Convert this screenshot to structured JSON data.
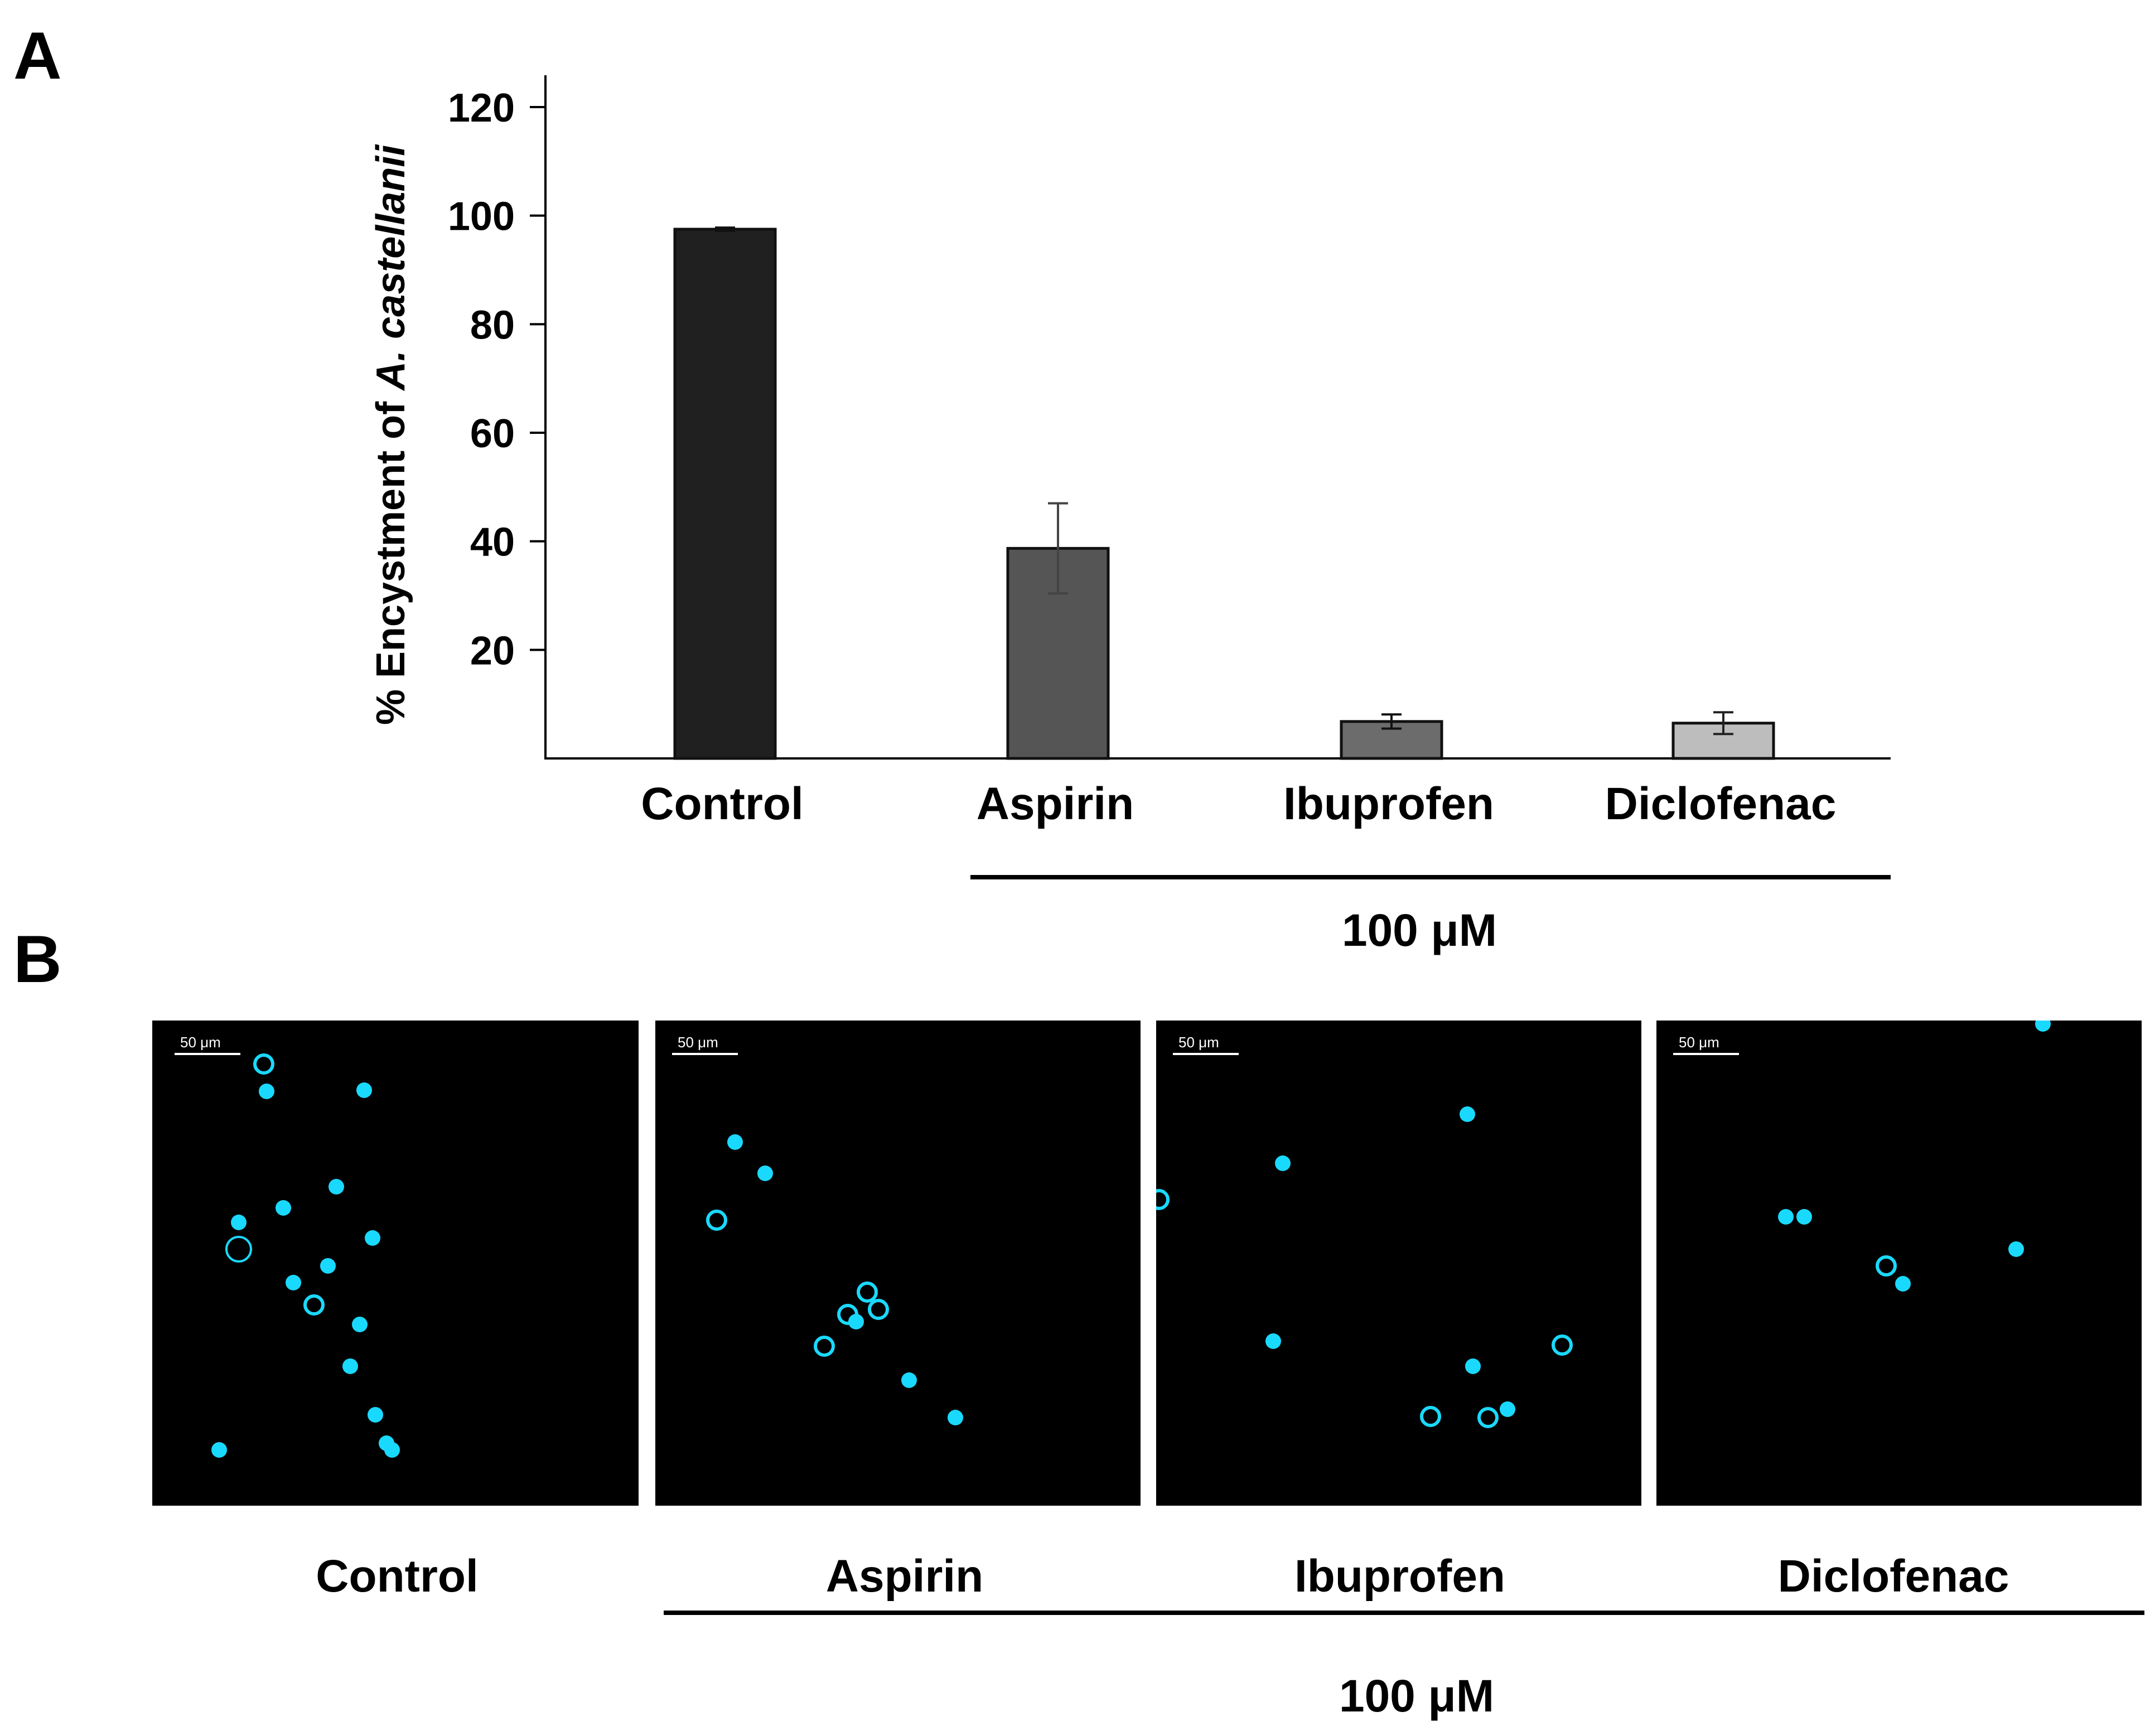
{
  "panel_a": {
    "letter": "A",
    "ylabel_prefix": "% Encystment of ",
    "ylabel_species": "A. castellanii",
    "concentration_label": "100 μM"
  },
  "panel_b": {
    "letter": "B",
    "scale_bar_label": "50 μm",
    "concentration_label": "100 μM",
    "panels": [
      {
        "label": "Control"
      },
      {
        "label": "Aspirin"
      },
      {
        "label": "Ibuprofen"
      },
      {
        "label": "Diclofenac"
      }
    ]
  },
  "chart_data": {
    "type": "bar",
    "categories": [
      "Control",
      "Aspirin",
      "Ibuprofen",
      "Diclofenac"
    ],
    "values": [
      97.5,
      38.7,
      6.8,
      6.5
    ],
    "errors": [
      0.3,
      8.3,
      1.3,
      2.0
    ],
    "ylim": [
      0,
      125
    ],
    "yticks": [
      20,
      40,
      60,
      80,
      100,
      120
    ],
    "bar_colors": [
      "#202020",
      "#555555",
      "#6c6c6c",
      "#bdbdbd"
    ],
    "xlabel": "",
    "ylabel": "% Encystment of A. castellanii",
    "grid": false
  },
  "cyst_color": "#1ad9ff"
}
